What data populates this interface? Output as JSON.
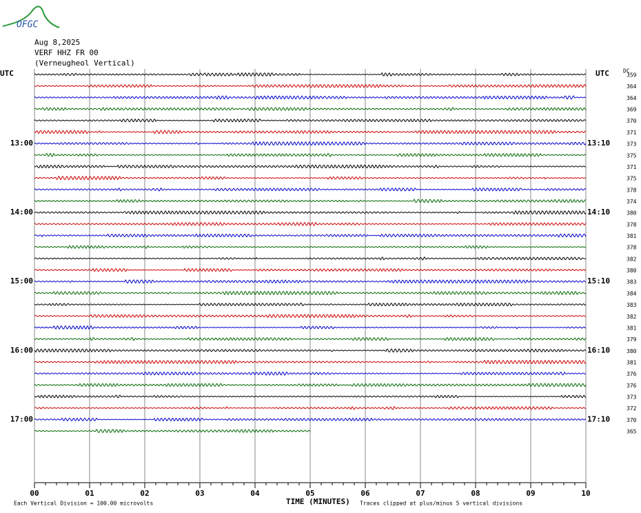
{
  "logo": "OFGC",
  "header": {
    "date": "Aug 8,2025",
    "station": "VERF HHZ FR 00",
    "name": "(Verneugheol Vertical)"
  },
  "utc_left": "UTC",
  "utc_right": "UTC",
  "dc_label": "DC",
  "left_times": [
    "13:00",
    "14:00",
    "15:00",
    "16:00",
    "17:00"
  ],
  "right_times": [
    "13:10",
    "14:10",
    "15:10",
    "16:10",
    "17:10"
  ],
  "dc_offsets": [
    359,
    364,
    364,
    369,
    370,
    371,
    373,
    375,
    371,
    375,
    378,
    374,
    380,
    378,
    381,
    378,
    382,
    380,
    383,
    384,
    383,
    382,
    381,
    379,
    380,
    381,
    376,
    376,
    373,
    372,
    370,
    365
  ],
  "x_ticks": [
    "00",
    "01",
    "02",
    "03",
    "04",
    "05",
    "06",
    "07",
    "08",
    "09",
    "10"
  ],
  "x_label": "TIME (MINUTES)",
  "footer_left": "Each Vertical Division =  100.00 microvolts",
  "footer_right": "Traces clipped at plus/minus 5 vertical divisions"
}
